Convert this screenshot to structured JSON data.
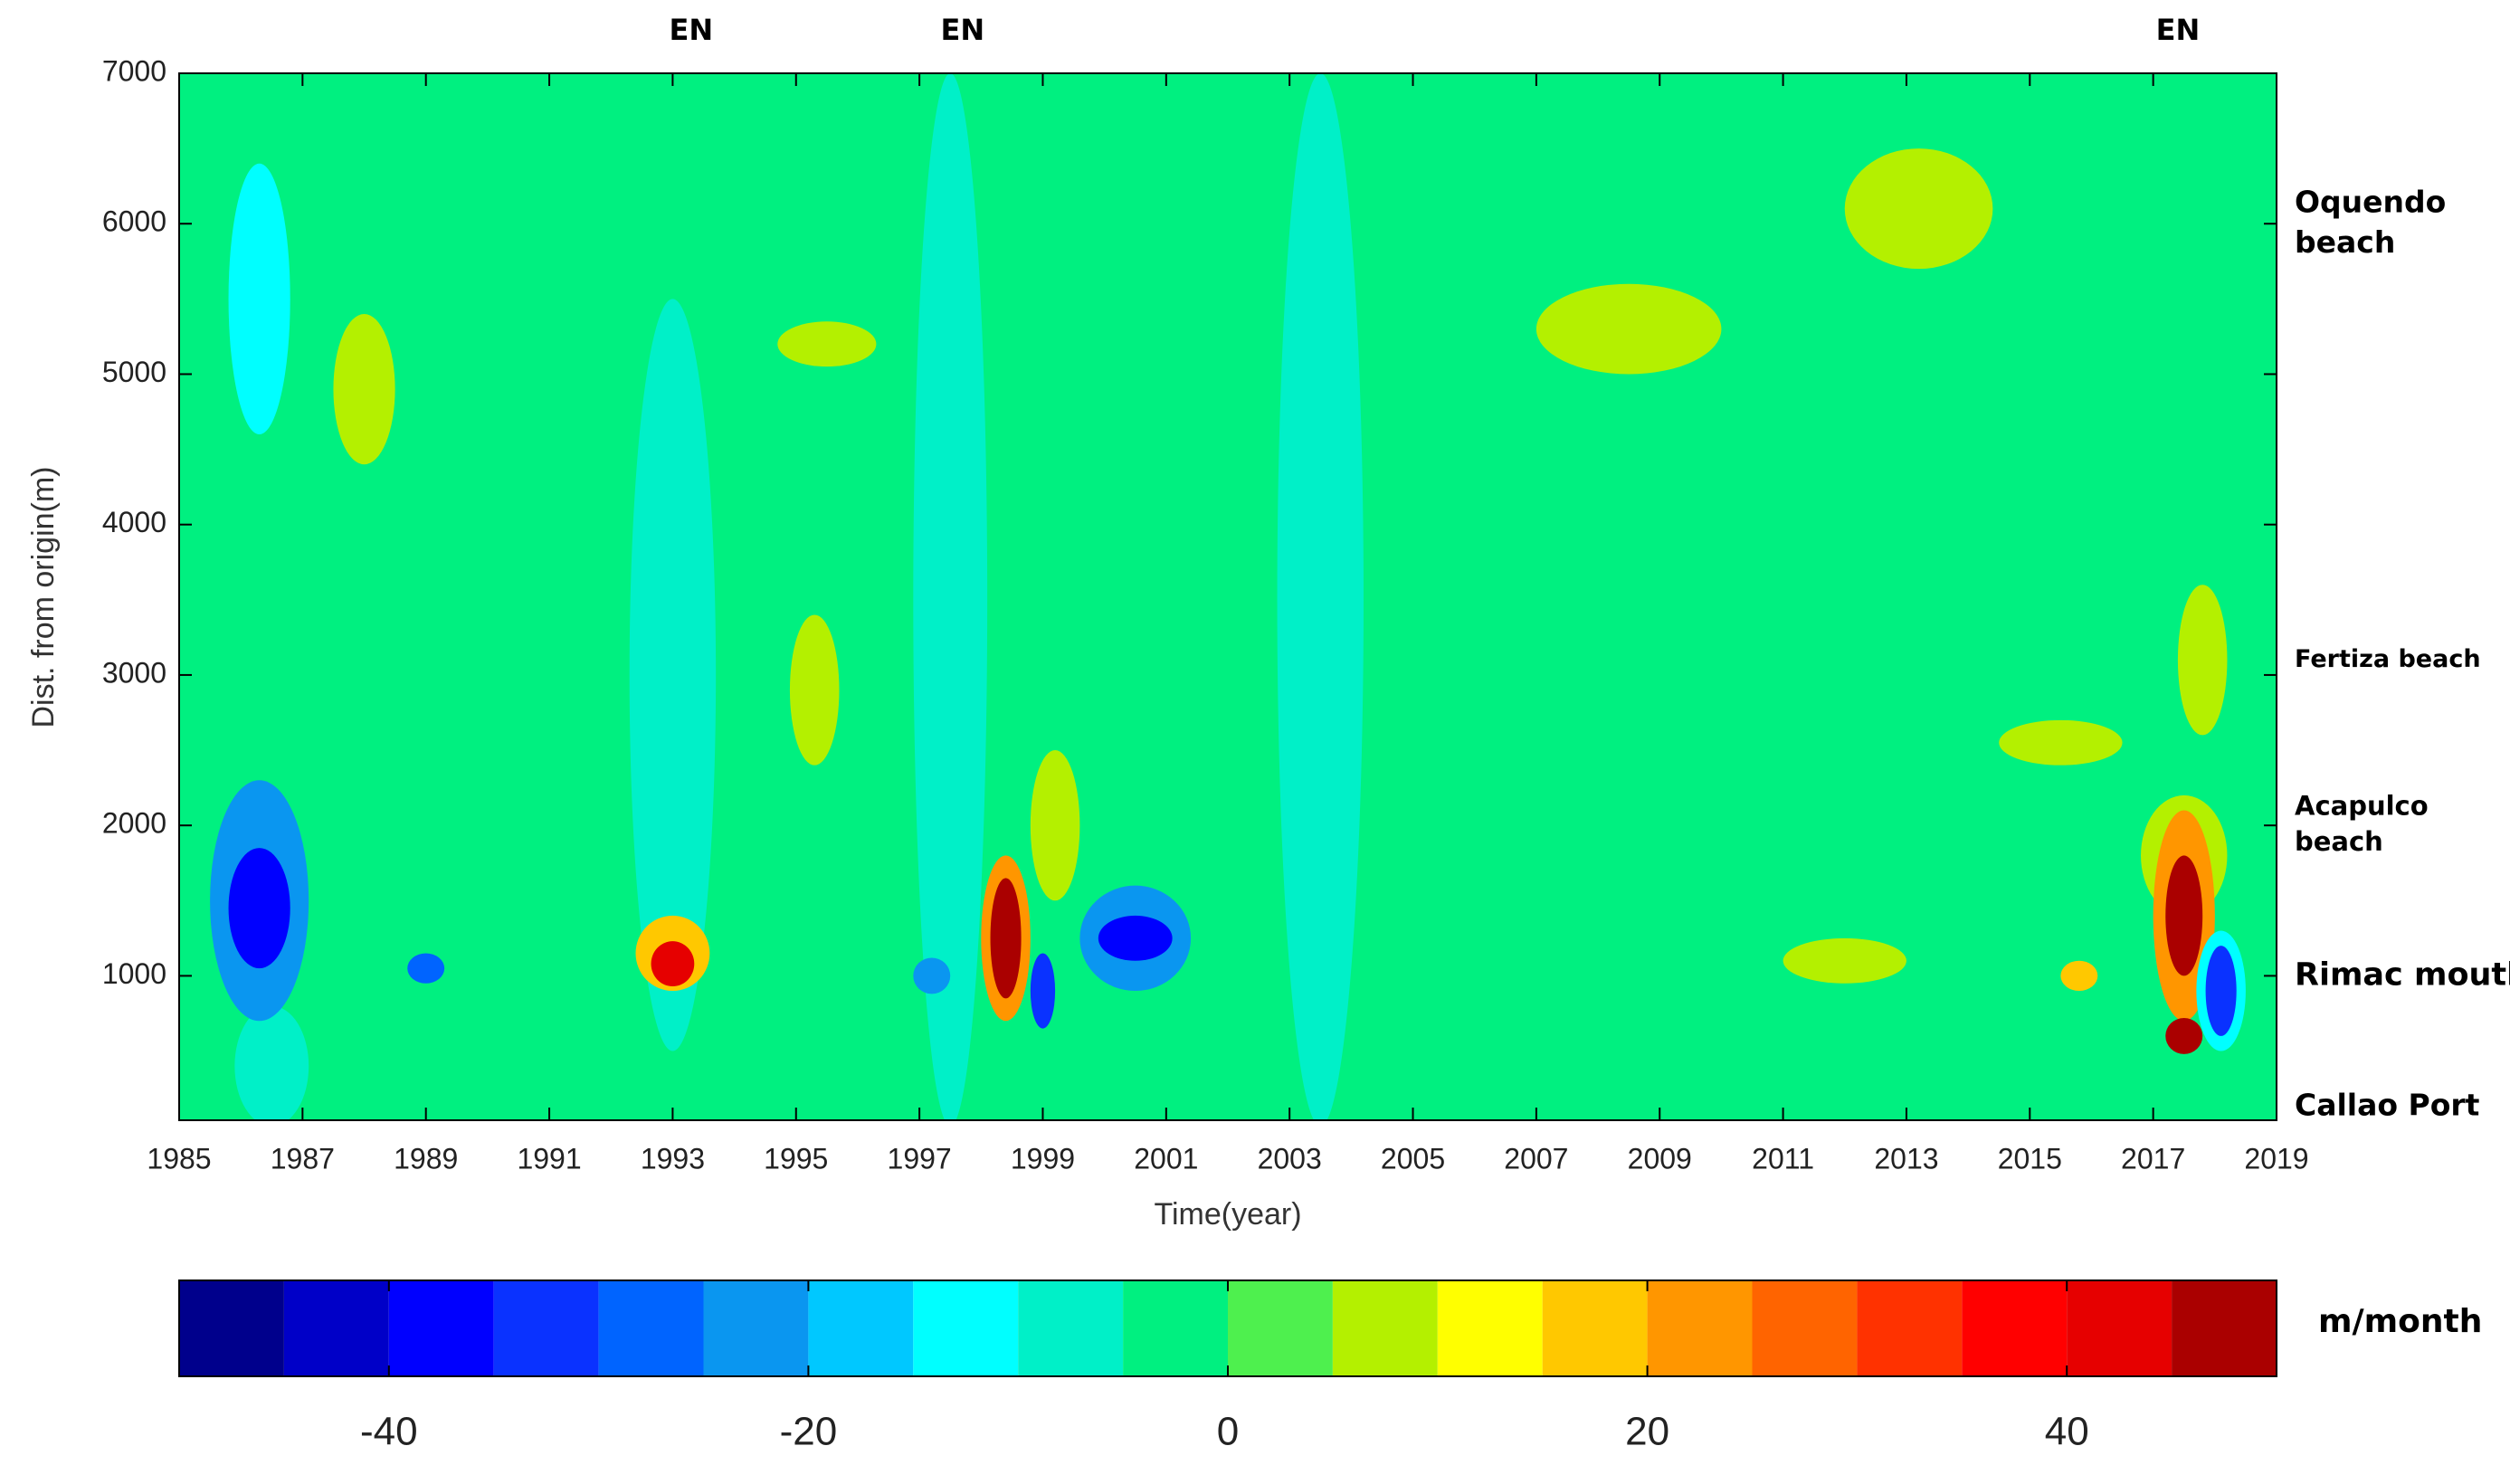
{
  "chart_data": {
    "type": "contour",
    "xlabel": "Time(year)",
    "ylabel": "Dist. from origin(m)",
    "xlim": [
      1985,
      2019
    ],
    "xticks": [
      1985,
      1987,
      1989,
      1991,
      1993,
      1995,
      1997,
      1999,
      2001,
      2003,
      2005,
      2007,
      2009,
      2011,
      2013,
      2015,
      2017,
      2019
    ],
    "ylim": [
      40,
      7000
    ],
    "yticks": [
      1000,
      2000,
      3000,
      4000,
      5000,
      6000,
      7000
    ],
    "base_value": -2,
    "field": {
      "x": [
        1997.5,
        2003.5,
        1993,
        1986.3,
        1986.5,
        1986.3,
        1986.3,
        1988,
        1989,
        1995.3,
        1995.5,
        1993,
        1993,
        1997.2,
        1998.4,
        1998.4,
        1999,
        1999.2,
        2000.5,
        2000.5,
        2008.5,
        2013.2,
        2015.5,
        2012,
        2015.8,
        2017.8,
        2017.5,
        2017.5,
        2017.5,
        2017.5,
        2018.1,
        2018.1
      ],
      "y": [
        3500,
        3500,
        3000,
        5500,
        400,
        1500,
        1450,
        4900,
        1050,
        2900,
        5200,
        1150,
        1080,
        1000,
        1250,
        1250,
        900,
        2000,
        1250,
        1250,
        5300,
        6100,
        2550,
        1100,
        1000,
        3100,
        1800,
        1400,
        1400,
        600,
        900,
        900
      ],
      "values": [
        -10,
        -10,
        -10,
        -15,
        -10,
        -25,
        -40,
        8,
        -30,
        8,
        8,
        15,
        40,
        -25,
        20,
        45,
        -35,
        8,
        -25,
        -40,
        8,
        8,
        8,
        8,
        15,
        8,
        8,
        20,
        45,
        45,
        -15,
        -35
      ],
      "x_halfwidth": [
        0.6,
        0.7,
        0.7,
        0.5,
        0.6,
        0.8,
        0.5,
        0.5,
        0.3,
        0.4,
        0.8,
        0.6,
        0.35,
        0.3,
        0.4,
        0.25,
        0.2,
        0.4,
        0.9,
        0.6,
        1.5,
        1.2,
        1.0,
        1.0,
        0.3,
        0.4,
        0.7,
        0.5,
        0.3,
        0.3,
        0.4,
        0.25
      ],
      "y_halfwidth": [
        3500,
        3500,
        2500,
        900,
        400,
        800,
        400,
        500,
        100,
        500,
        150,
        250,
        150,
        120,
        550,
        400,
        250,
        500,
        350,
        150,
        300,
        400,
        150,
        150,
        100,
        500,
        400,
        700,
        400,
        120,
        400,
        300
      ]
    },
    "top_annotations": [
      {
        "text": "EN",
        "x": 1993.3
      },
      {
        "text": "EN",
        "x": 1997.7
      },
      {
        "text": "EN",
        "x": 2017.4
      }
    ],
    "right_annotations": [
      {
        "lines": [
          "Oquendo",
          "beach"
        ],
        "y": 6000
      },
      {
        "lines": [
          "Fertiza beach"
        ],
        "y": 3100
      },
      {
        "lines": [
          "Acapulco",
          "beach"
        ],
        "y": 2000
      },
      {
        "lines": [
          "Rimac mouth"
        ],
        "y": 1000
      },
      {
        "lines": [
          "Callao Port"
        ],
        "y": 130
      }
    ],
    "colorbar": {
      "label": "m/month",
      "levels": [
        -50,
        -45,
        -40,
        -35,
        -30,
        -25,
        -20,
        -15,
        -10,
        -5,
        0,
        5,
        10,
        15,
        20,
        25,
        30,
        35,
        40,
        45,
        50
      ],
      "colors": [
        "#00008c",
        "#0000c8",
        "#0000ff",
        "#0a32ff",
        "#0064ff",
        "#0a96f0",
        "#00c8ff",
        "#00ffff",
        "#00f0c8",
        "#00f080",
        "#4ef04e",
        "#b4f000",
        "#ffff00",
        "#ffc800",
        "#ff9600",
        "#ff6400",
        "#ff3200",
        "#ff0000",
        "#e60000",
        "#aa0000"
      ],
      "ticks": [
        -40,
        -20,
        0,
        20,
        40
      ]
    }
  }
}
